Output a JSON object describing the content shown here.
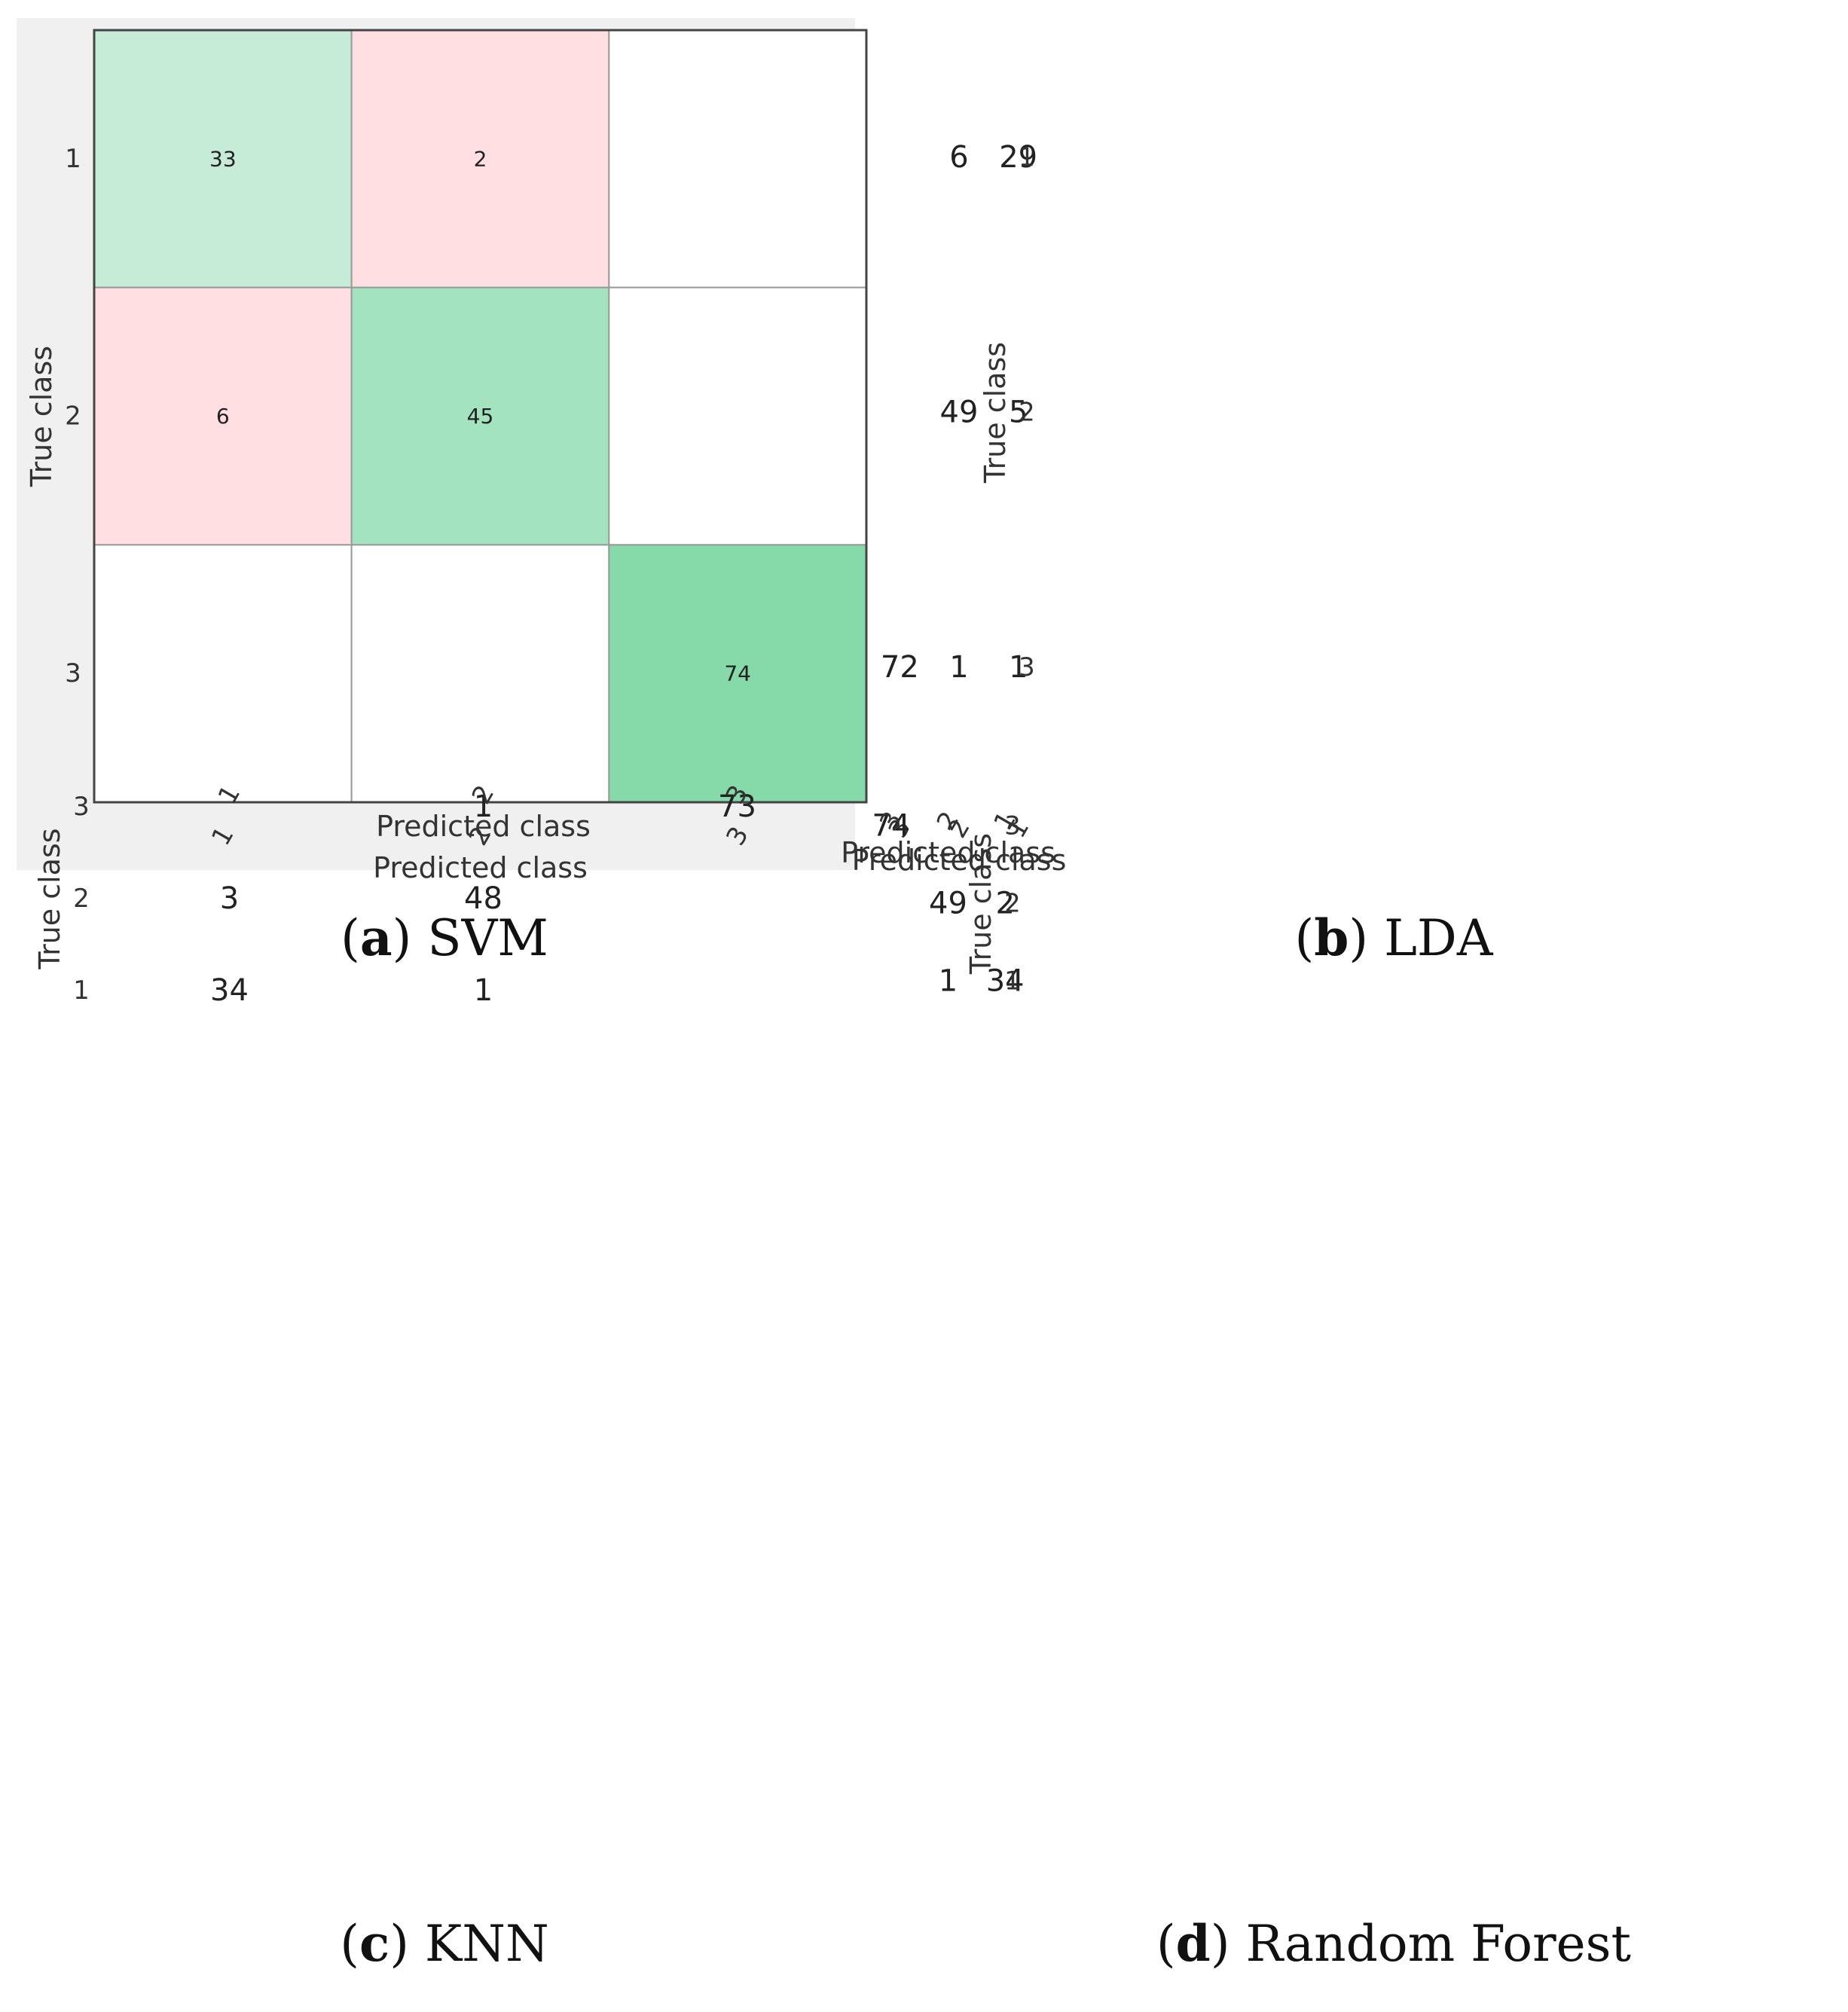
{
  "colors": {
    "correct_light": "#c6ecd8",
    "correct_mid": "#a3e3bf",
    "correct_strong": "#86d9a8",
    "error": "#ffdfe2",
    "empty": "#ffffff",
    "panel_background": "#f0f0f0"
  },
  "chart_data": [
    {
      "type": "heatmap",
      "title": "(a) SVM",
      "caption_letter": "a",
      "caption_name": "SVM",
      "xlabel": "Predicted class",
      "ylabel": "True class",
      "x_categories": [
        "1",
        "2",
        "3"
      ],
      "y_categories": [
        "1",
        "2",
        "3"
      ],
      "matrix": [
        [
          33,
          2,
          null
        ],
        [
          6,
          45,
          null
        ],
        [
          null,
          null,
          74
        ]
      ]
    },
    {
      "type": "heatmap",
      "title": "(b) LDA",
      "caption_letter": "b",
      "caption_name": "LDA",
      "xlabel": "Predicted class",
      "ylabel": "True class",
      "x_categories": [
        "1",
        "2",
        "3"
      ],
      "y_categories": [
        "1",
        "2",
        "3"
      ],
      "matrix": [
        [
          29,
          6,
          null
        ],
        [
          5,
          49,
          null
        ],
        [
          1,
          1,
          72
        ]
      ]
    },
    {
      "type": "heatmap",
      "title": "(c) KNN",
      "caption_letter": "c",
      "caption_name": "KNN",
      "xlabel": "Predicted class",
      "ylabel": "True class",
      "x_categories": [
        "1",
        "2",
        "3"
      ],
      "y_categories": [
        "1",
        "2",
        "3"
      ],
      "matrix": [
        [
          34,
          1,
          null
        ],
        [
          3,
          48,
          null
        ],
        [
          null,
          1,
          73
        ]
      ]
    },
    {
      "type": "heatmap",
      "title": "(d) Random Forest",
      "caption_letter": "d",
      "caption_name": "Random Forest",
      "xlabel": "Predicted class",
      "ylabel": "True class",
      "x_categories": [
        "1",
        "2",
        "3"
      ],
      "y_categories": [
        "1",
        "2",
        "3"
      ],
      "matrix": [
        [
          34,
          1,
          null
        ],
        [
          2,
          49,
          null
        ],
        [
          null,
          null,
          74
        ]
      ]
    }
  ]
}
